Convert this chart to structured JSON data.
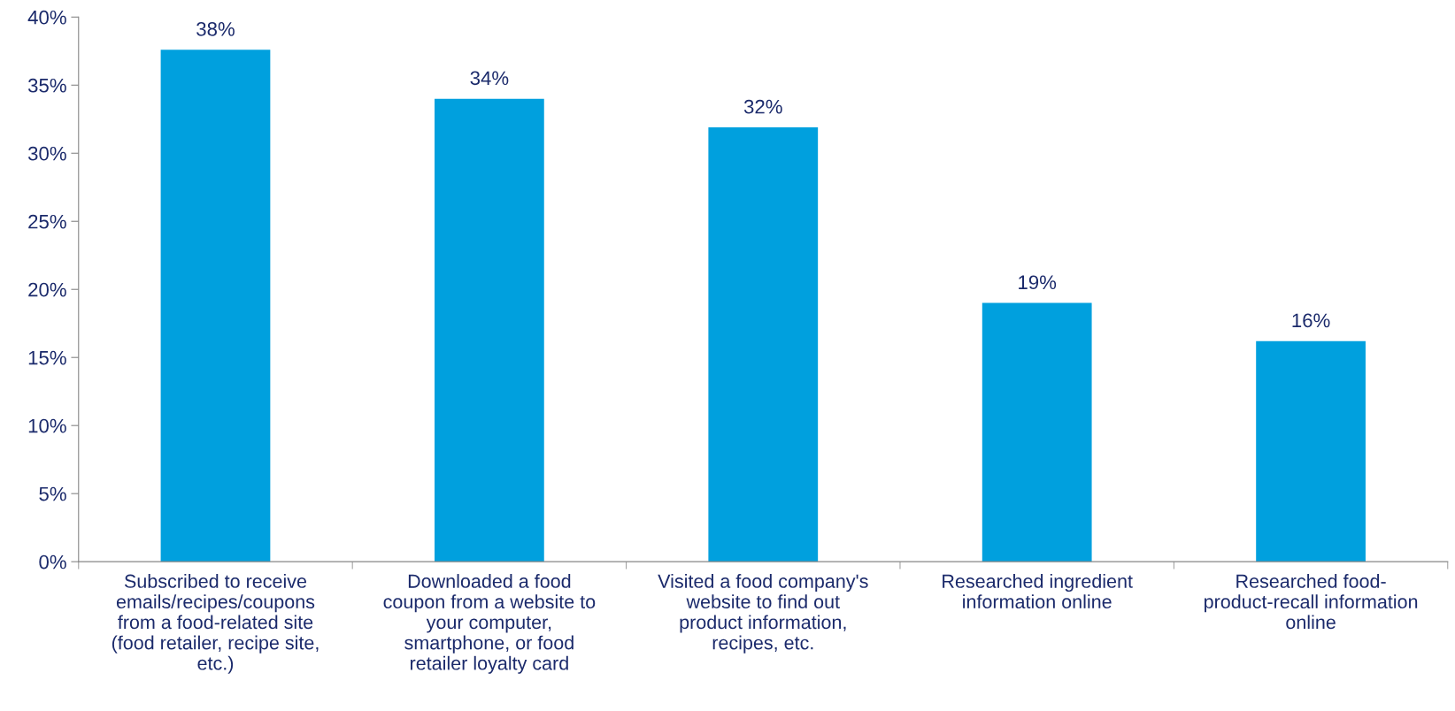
{
  "chart_data": {
    "type": "bar",
    "categories": [
      "Subscribed to receive\nemails/recipes/coupons\nfrom a food-related site\n(food retailer, recipe site,\netc.)",
      "Downloaded a food\ncoupon from a website to\nyour computer,\nsmartphone, or food\nretailer loyalty card",
      "Visited a food company's\nwebsite to find out\nproduct information,\nrecipes, etc.",
      "Researched ingredient\ninformation online",
      "Researched food-\nproduct-recall information\nonline"
    ],
    "values": [
      37.6,
      34,
      31.9,
      19,
      16.2
    ],
    "value_labels": [
      "38%",
      "34%",
      "32%",
      "19%",
      "16%"
    ],
    "color": "#00a0de",
    "ylim": [
      0,
      40
    ],
    "yticks": [
      {
        "value": 0,
        "label": "0%"
      },
      {
        "value": 5,
        "label": "5%"
      },
      {
        "value": 10,
        "label": "10%"
      },
      {
        "value": 15,
        "label": "15%"
      },
      {
        "value": 20,
        "label": "20%"
      },
      {
        "value": 25,
        "label": "25%"
      },
      {
        "value": 30,
        "label": "30%"
      },
      {
        "value": 35,
        "label": "35%"
      },
      {
        "value": 40,
        "label": "40%"
      }
    ],
    "grid": false,
    "legend": false
  }
}
